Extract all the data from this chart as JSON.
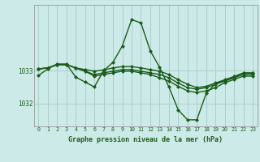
{
  "title": "Graphe pression niveau de la mer (hPa)",
  "background_color": "#cceae7",
  "plot_bg_color": "#cceae7",
  "grid_color": "#aacfcc",
  "line_color": "#1a5c1a",
  "marker_color": "#1a5c1a",
  "xlim": [
    -0.5,
    23.5
  ],
  "ylim": [
    1031.3,
    1035.0
  ],
  "yticks": [
    1032,
    1033
  ],
  "xticks": [
    0,
    1,
    2,
    3,
    4,
    5,
    6,
    7,
    8,
    9,
    10,
    11,
    12,
    13,
    14,
    15,
    16,
    17,
    18,
    19,
    20,
    21,
    22,
    23
  ],
  "series": [
    [
      1032.85,
      1033.05,
      1033.2,
      1033.2,
      1032.8,
      1032.65,
      1032.5,
      1033.0,
      1033.25,
      1033.75,
      1034.55,
      1034.45,
      1033.6,
      1033.1,
      1032.5,
      1031.8,
      1031.5,
      1031.5,
      1032.3,
      1032.6,
      1032.7,
      1032.8,
      1032.92,
      1032.92
    ],
    [
      1033.05,
      1033.08,
      1033.18,
      1033.18,
      1033.08,
      1033.03,
      1032.98,
      1033.02,
      1033.08,
      1033.12,
      1033.12,
      1033.08,
      1033.03,
      1032.98,
      1032.88,
      1032.72,
      1032.58,
      1032.48,
      1032.52,
      1032.62,
      1032.72,
      1032.82,
      1032.93,
      1032.93
    ],
    [
      1033.05,
      1033.08,
      1033.18,
      1033.18,
      1033.08,
      1032.98,
      1032.88,
      1032.93,
      1032.98,
      1033.03,
      1033.03,
      1032.98,
      1032.93,
      1032.88,
      1032.78,
      1032.62,
      1032.48,
      1032.43,
      1032.48,
      1032.58,
      1032.68,
      1032.78,
      1032.88,
      1032.88
    ],
    [
      1033.05,
      1033.08,
      1033.18,
      1033.18,
      1033.08,
      1032.98,
      1032.83,
      1032.88,
      1032.93,
      1032.98,
      1032.98,
      1032.93,
      1032.88,
      1032.78,
      1032.68,
      1032.52,
      1032.38,
      1032.33,
      1032.38,
      1032.48,
      1032.63,
      1032.73,
      1032.83,
      1032.83
    ]
  ]
}
